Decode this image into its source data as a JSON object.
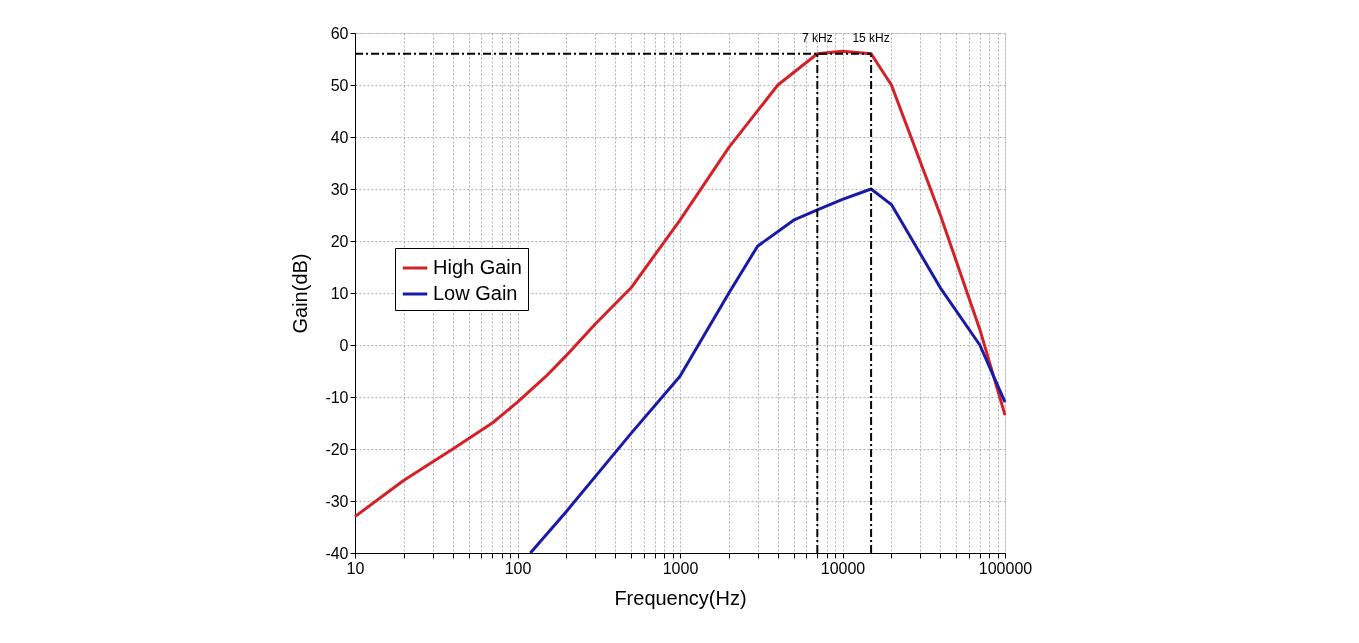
{
  "chart_data": {
    "type": "line",
    "xlabel": "Frequency(Hz)",
    "ylabel": "Gain(dB)",
    "log": "x",
    "grid": true,
    "legend": "left",
    "line_style": "solid",
    "marker": "none",
    "xlim": [
      10,
      100000
    ],
    "ylim": [
      -40,
      60
    ],
    "xticks": [
      10,
      {
        "value": 20,
        "label": null
      },
      {
        "value": 30,
        "label": null
      },
      {
        "value": 40,
        "label": null
      },
      {
        "value": 50,
        "label": null
      },
      {
        "value": 60,
        "label": null
      },
      {
        "value": 70,
        "label": null
      },
      {
        "value": 80,
        "label": null
      },
      {
        "value": 90,
        "label": null
      },
      100,
      {
        "value": 200,
        "label": null
      },
      {
        "value": 300,
        "label": null
      },
      {
        "value": 400,
        "label": null
      },
      {
        "value": 500,
        "label": null
      },
      {
        "value": 600,
        "label": null
      },
      {
        "value": 700,
        "label": null
      },
      {
        "value": 800,
        "label": null
      },
      {
        "value": 900,
        "label": null
      },
      1000,
      {
        "value": 2000,
        "label": null
      },
      {
        "value": 3000,
        "label": null
      },
      {
        "value": 4000,
        "label": null
      },
      {
        "value": 5000,
        "label": null
      },
      {
        "value": 6000,
        "label": null
      },
      {
        "value": 7000,
        "label": null
      },
      {
        "value": 8000,
        "label": null
      },
      {
        "value": 9000,
        "label": null
      },
      10000,
      {
        "value": 20000,
        "label": null
      },
      {
        "value": 30000,
        "label": null
      },
      {
        "value": 40000,
        "label": null
      },
      {
        "value": 50000,
        "label": null
      },
      {
        "value": 60000,
        "label": null
      },
      {
        "value": 70000,
        "label": null
      },
      {
        "value": 80000,
        "label": null
      },
      {
        "value": 90000,
        "label": null
      },
      100000
    ],
    "yticks": [
      -40,
      -30,
      -20,
      -10,
      0,
      10,
      20,
      30,
      40,
      50,
      60
    ],
    "series": [
      {
        "name": "High Gain",
        "color": "#d42027",
        "x": [
          10,
          20,
          40,
          70,
          100,
          150,
          200,
          300,
          500,
          1000,
          2000,
          4000,
          7000,
          10000,
          15000,
          20000,
          40000,
          70000,
          100000
        ],
        "values": [
          -33,
          -26,
          -20,
          -15,
          -11,
          -6,
          -2,
          4,
          11,
          24,
          38,
          50,
          56,
          56.5,
          56,
          50,
          25,
          3,
          -13.5
        ]
      },
      {
        "name": "Low Gain",
        "color": "#1a1aa8",
        "x": [
          120,
          200,
          500,
          1000,
          2000,
          3000,
          5000,
          7000,
          10000,
          15000,
          20000,
          40000,
          70000,
          100000
        ],
        "values": [
          -40,
          -32,
          -17,
          -6,
          10,
          19,
          24,
          26,
          28,
          30,
          27,
          11,
          0,
          -11
        ]
      }
    ],
    "ref_lines": [
      {
        "axis": "y",
        "value": 56,
        "line_style": "dashdot",
        "color": "#000000"
      },
      {
        "axis": "x",
        "value": 7000,
        "line_style": "dashdot",
        "color": "#000000"
      },
      {
        "axis": "x",
        "value": 15000,
        "line_style": "dashdot",
        "color": "#000000"
      }
    ],
    "annotations": [
      {
        "text": "7 kHz",
        "x": 7000,
        "y": 56
      },
      {
        "text": "15 kHz",
        "x": 15000,
        "y": 56
      }
    ]
  }
}
